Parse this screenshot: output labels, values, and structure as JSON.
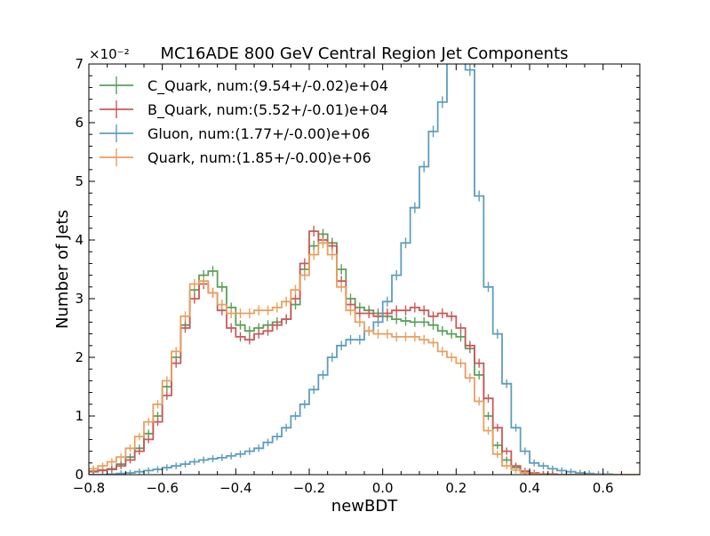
{
  "chart_data": {
    "type": "line",
    "drawstyle": "step",
    "title": "MC16ADE 800 GeV Central Region Jet Components",
    "xlabel": "newBDT",
    "ylabel": "Number of Jets",
    "y_offset_text": "×10⁻²",
    "xlim": [
      -0.8,
      0.7
    ],
    "ylim": [
      0,
      7
    ],
    "xticks": [
      -0.8,
      -0.6,
      -0.4,
      -0.2,
      0.0,
      0.2,
      0.4,
      0.6
    ],
    "xtick_labels": [
      "−0.8",
      "−0.6",
      "−0.4",
      "−0.2",
      "0.0",
      "0.2",
      "0.4",
      "0.6"
    ],
    "yticks": [
      0,
      1,
      2,
      3,
      4,
      5,
      6,
      7
    ],
    "ytick_labels": [
      "0",
      "1",
      "2",
      "3",
      "4",
      "5",
      "6",
      "7"
    ],
    "grid": false,
    "legend_position": "top-left",
    "bin_edges_start": -0.8,
    "bin_width": 0.025,
    "series": [
      {
        "name": "C_Quark, num:(9.54+/-0.02)e+04",
        "color": "#5aa05a",
        "error_bars": true,
        "values": [
          0.06,
          0.08,
          0.1,
          0.18,
          0.3,
          0.45,
          0.7,
          1.0,
          1.5,
          2.0,
          2.55,
          3.15,
          3.4,
          3.47,
          3.2,
          2.85,
          2.55,
          2.45,
          2.5,
          2.55,
          2.6,
          2.65,
          2.9,
          3.5,
          3.9,
          4.1,
          3.95,
          3.5,
          3.0,
          2.85,
          2.8,
          2.75,
          2.7,
          2.65,
          2.62,
          2.6,
          2.6,
          2.55,
          2.45,
          2.4,
          2.35,
          2.15,
          1.7,
          1.0,
          0.5,
          0.25,
          0.12,
          0.05,
          0.02,
          0.01,
          0.01,
          0.0,
          0.0,
          0.0,
          0.0,
          0.0,
          0.0,
          0.0,
          0.0,
          0.0
        ]
      },
      {
        "name": "B_Quark, num:(5.52+/-0.01)e+04",
        "color": "#c85a5a",
        "error_bars": true,
        "values": [
          0.05,
          0.07,
          0.09,
          0.15,
          0.25,
          0.4,
          0.6,
          0.9,
          1.35,
          1.9,
          2.5,
          3.0,
          3.25,
          3.1,
          2.8,
          2.5,
          2.35,
          2.3,
          2.4,
          2.45,
          2.55,
          2.65,
          3.0,
          3.6,
          4.15,
          4.0,
          3.9,
          3.3,
          2.9,
          2.75,
          2.75,
          2.7,
          2.75,
          2.8,
          2.8,
          2.85,
          2.8,
          2.7,
          2.75,
          2.7,
          2.5,
          2.2,
          1.9,
          1.3,
          0.8,
          0.4,
          0.15,
          0.06,
          0.03,
          0.01,
          0.01,
          0.0,
          0.0,
          0.0,
          0.0,
          0.0,
          0.0,
          0.0,
          0.0,
          0.0
        ]
      },
      {
        "name": "Gluon, num:(1.77+/-0.00)e+06",
        "color": "#5e9dbe",
        "error_bars": true,
        "values": [
          0.0,
          0.0,
          0.01,
          0.02,
          0.03,
          0.05,
          0.07,
          0.09,
          0.12,
          0.15,
          0.18,
          0.22,
          0.25,
          0.27,
          0.29,
          0.32,
          0.35,
          0.4,
          0.45,
          0.55,
          0.65,
          0.8,
          1.0,
          1.2,
          1.45,
          1.7,
          2.0,
          2.2,
          2.3,
          2.3,
          2.45,
          2.6,
          2.95,
          3.4,
          3.95,
          4.55,
          5.25,
          5.85,
          6.35,
          7.2,
          7.2,
          6.9,
          4.75,
          3.2,
          2.4,
          1.55,
          0.8,
          0.4,
          0.2,
          0.15,
          0.1,
          0.07,
          0.05,
          0.03,
          0.02,
          0.01,
          0.01,
          0.0,
          0.0,
          0.0
        ]
      },
      {
        "name": "Quark, num:(1.85+/-0.00)e+06",
        "color": "#e8a060",
        "error_bars": true,
        "values": [
          0.1,
          0.15,
          0.22,
          0.3,
          0.45,
          0.65,
          0.9,
          1.2,
          1.6,
          2.1,
          2.7,
          3.25,
          3.3,
          3.1,
          2.9,
          2.75,
          2.75,
          2.75,
          2.8,
          2.8,
          2.85,
          2.95,
          3.15,
          3.4,
          3.75,
          3.95,
          3.75,
          3.2,
          2.8,
          2.6,
          2.45,
          2.4,
          2.4,
          2.35,
          2.35,
          2.35,
          2.3,
          2.25,
          2.1,
          2.0,
          1.9,
          1.65,
          1.25,
          0.75,
          0.35,
          0.15,
          0.08,
          0.03,
          0.01,
          0.0,
          0.0,
          0.0,
          0.0,
          0.0,
          0.0,
          0.0,
          0.0,
          0.0,
          0.0,
          0.0
        ]
      }
    ]
  }
}
